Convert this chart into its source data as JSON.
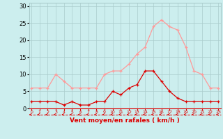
{
  "hours": [
    0,
    1,
    2,
    3,
    4,
    5,
    6,
    7,
    8,
    9,
    10,
    11,
    12,
    13,
    14,
    15,
    16,
    17,
    18,
    19,
    20,
    21,
    22,
    23
  ],
  "wind_avg": [
    2,
    2,
    2,
    2,
    1,
    2,
    1,
    1,
    2,
    2,
    5,
    4,
    6,
    7,
    11,
    11,
    8,
    5,
    3,
    2,
    2,
    2,
    2,
    2
  ],
  "wind_gust": [
    6,
    6,
    6,
    10,
    8,
    6,
    6,
    6,
    6,
    10,
    11,
    11,
    13,
    16,
    18,
    24,
    26,
    24,
    23,
    18,
    11,
    10,
    6,
    6
  ],
  "avg_color": "#dd0000",
  "gust_color": "#ff9999",
  "bg_color": "#cceeee",
  "grid_color": "#aacccc",
  "xlabel": "Vent moyen/en rafales ( km/h )",
  "xlabel_color": "#dd0000",
  "yticks": [
    0,
    5,
    10,
    15,
    20,
    25,
    30
  ],
  "ylim": [
    0,
    31
  ],
  "xlim": [
    -0.3,
    23.3
  ]
}
